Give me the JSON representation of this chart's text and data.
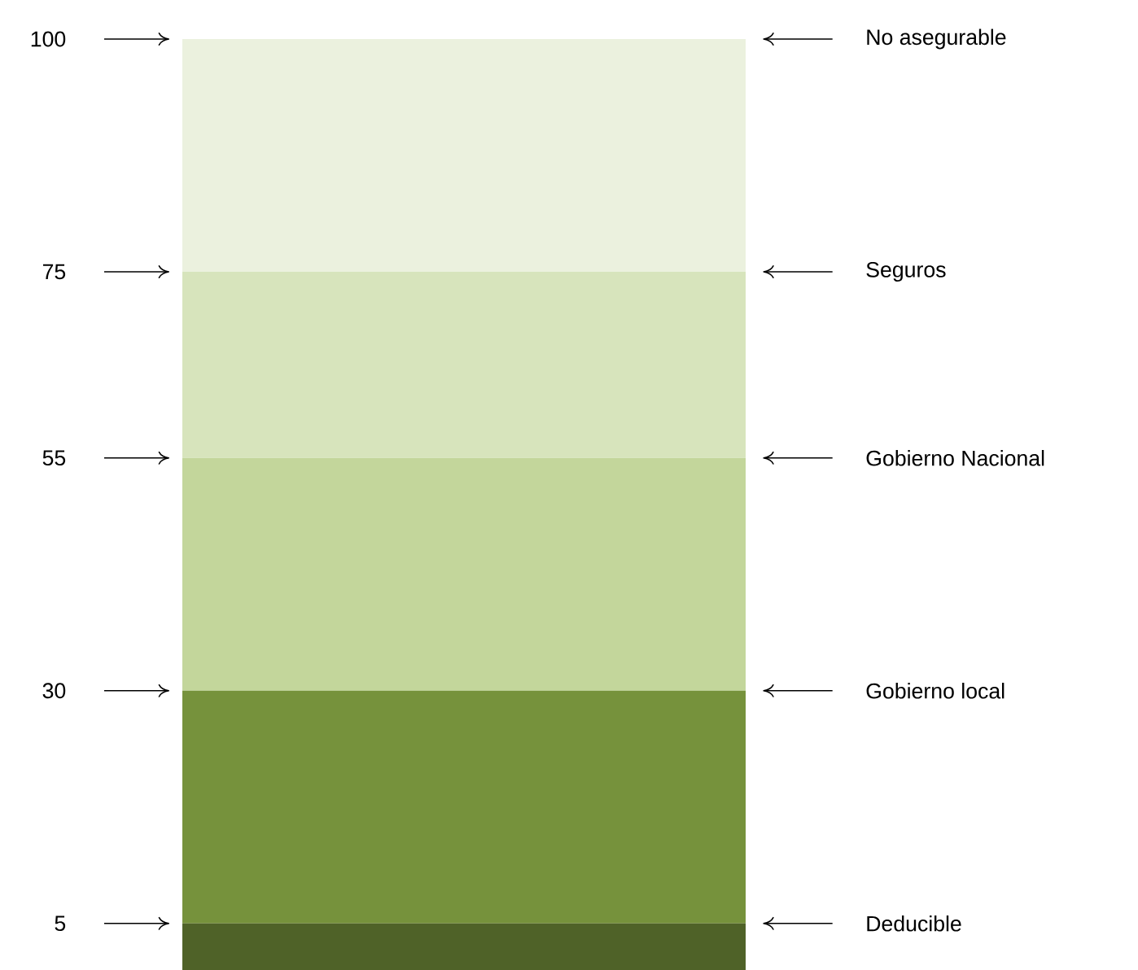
{
  "chart_data": {
    "type": "bar",
    "stacked": true,
    "categories": [
      null
    ],
    "ylim": [
      0,
      100
    ],
    "yticks": [
      5,
      30,
      55,
      75,
      100
    ],
    "grid": false,
    "series": [
      {
        "name": "Deducible",
        "color": "#4f6228",
        "values": [
          5
        ]
      },
      {
        "name": "Gobierno local",
        "color": "#76923c",
        "values": [
          25
        ]
      },
      {
        "name": "Gobierno Nacional",
        "color": "#c3d69b",
        "values": [
          25
        ]
      },
      {
        "name": "Seguros",
        "color": "#d7e4bc",
        "values": [
          20
        ]
      },
      {
        "name": "No asegurable",
        "color": "#ebf1de",
        "values": [
          25
        ]
      }
    ]
  }
}
